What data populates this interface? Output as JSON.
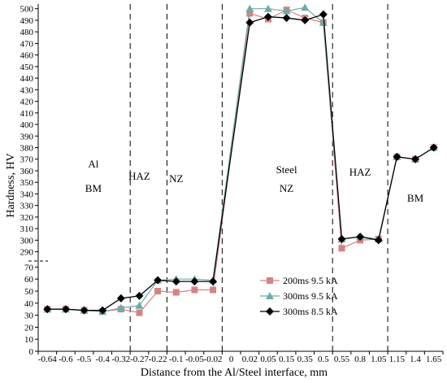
{
  "chart_data": {
    "type": "line",
    "xlabel": "Distance from the Al/Steel interface, mm",
    "ylabel": "Hardness, HV",
    "categories": [
      "-0.64",
      "-0.6",
      "-0.5",
      "-0.4",
      "-0.32",
      "-0.27",
      "-0.22",
      "-0.1",
      "-0.05",
      "-0.02",
      "0",
      "0.02",
      "0.05",
      "0.15",
      "0.35",
      "0.5",
      "0.55",
      "0.8",
      "1.05",
      "1.15",
      "1.4",
      "1.65"
    ],
    "y_ticks_lower": [
      0,
      10,
      20,
      30,
      40,
      50,
      60,
      70
    ],
    "y_ticks_upper": [
      290,
      300,
      310,
      320,
      330,
      340,
      350,
      360,
      370,
      380,
      390,
      400,
      410,
      420,
      430,
      440,
      450,
      460,
      470,
      480,
      490,
      500
    ],
    "broken_axis": {
      "lower_range": [
        0,
        75
      ],
      "upper_range": [
        282,
        504
      ]
    },
    "grid": false,
    "legend_position": "center-right",
    "boundaries_after_category": [
      "-0.32",
      "-0.22",
      "-0.02",
      "0.5",
      "1.05"
    ],
    "regions": [
      {
        "lines": [
          "Al",
          "BM"
        ],
        "between": [
          "-0.5",
          "-0.4"
        ]
      },
      {
        "lines": [
          "HAZ"
        ],
        "between": [
          "-0.27",
          "-0.27"
        ]
      },
      {
        "lines": [
          "NZ"
        ],
        "between": [
          "-0.1",
          "-0.1"
        ]
      },
      {
        "lines": [
          "Steel",
          "NZ"
        ],
        "between": [
          "0.15",
          "0.15"
        ]
      },
      {
        "lines": [
          "HAZ"
        ],
        "between": [
          "0.8",
          "0.8"
        ]
      },
      {
        "lines": [
          "BM"
        ],
        "between": [
          "1.4",
          "1.4"
        ]
      }
    ],
    "series": [
      {
        "name": "200ms 9.5 kA",
        "color": "#d98080",
        "marker": "square",
        "values": [
          35,
          35,
          34,
          33,
          35,
          32,
          50,
          49,
          51,
          51,
          null,
          496,
          491,
          499,
          492,
          488,
          293,
          300,
          301,
          372,
          370,
          380
        ]
      },
      {
        "name": "300ms 9.5 kA",
        "color": "#6aacae",
        "marker": "triangle",
        "values": [
          35,
          35,
          34,
          33,
          36,
          38,
          59,
          60,
          60,
          59,
          null,
          500,
          500,
          498,
          501,
          488,
          301,
          303,
          301,
          372,
          370,
          380
        ]
      },
      {
        "name": "300ms 8.5 kA",
        "color": "#000000",
        "marker": "diamond",
        "values": [
          35,
          35,
          34,
          34,
          44,
          46,
          59,
          58,
          58,
          58,
          null,
          488,
          493,
          492,
          490,
          495,
          301,
          303,
          300,
          372,
          370,
          380
        ]
      }
    ]
  }
}
